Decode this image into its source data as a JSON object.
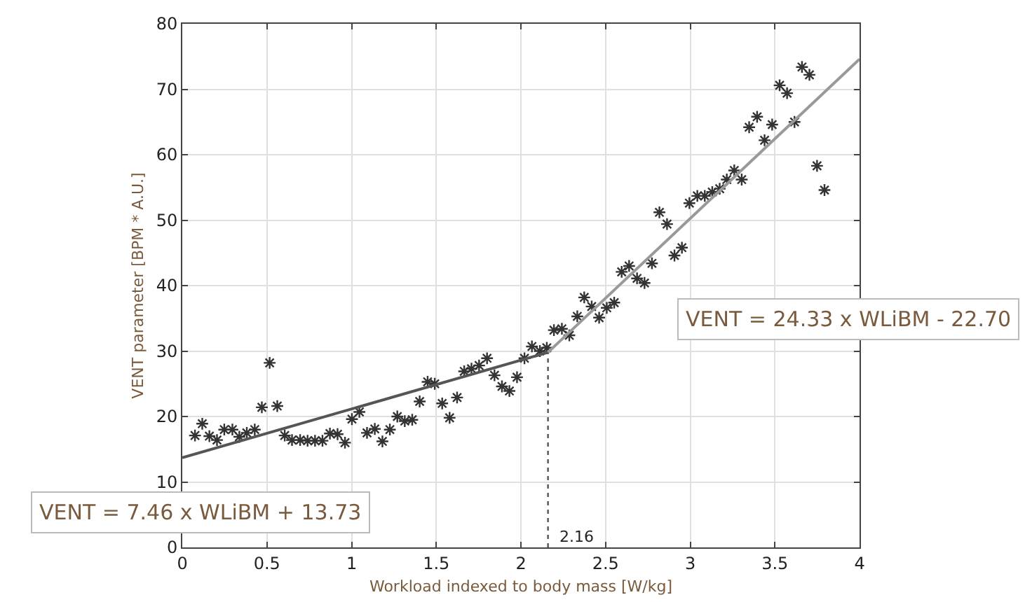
{
  "chart_data": {
    "type": "scatter",
    "xlabel": "Workload indexed to body mass [W/kg]",
    "ylabel": "VENT parameter [BPM * A.U.]",
    "xlim": [
      0,
      4
    ],
    "xticks": [
      0,
      0.5,
      1,
      1.5,
      2,
      2.5,
      3,
      3.5,
      4
    ],
    "ylim": [
      0,
      80
    ],
    "yticks": [
      0,
      10,
      20,
      30,
      40,
      50,
      60,
      70,
      80
    ],
    "grid": true,
    "series": [
      {
        "marker": "cross",
        "color": "#333333",
        "x": [
          0.075,
          0.118,
          0.16,
          0.205,
          0.248,
          0.296,
          0.337,
          0.381,
          0.428,
          0.47,
          0.516,
          0.561,
          0.605,
          0.648,
          0.696,
          0.74,
          0.784,
          0.828,
          0.872,
          0.917,
          0.961,
          1.002,
          1.046,
          1.091,
          1.137,
          1.182,
          1.226,
          1.27,
          1.314,
          1.358,
          1.402,
          1.449,
          1.491,
          1.535,
          1.579,
          1.623,
          1.665,
          1.708,
          1.753,
          1.8,
          1.844,
          1.888,
          1.932,
          1.977,
          2.021,
          2.065,
          2.112,
          2.153,
          2.195,
          2.242,
          2.286,
          2.333,
          2.374,
          2.418,
          2.462,
          2.507,
          2.551,
          2.595,
          2.639,
          2.686,
          2.73,
          2.774,
          2.818,
          2.863,
          2.907,
          2.951,
          2.995,
          3.042,
          3.086,
          3.13,
          3.174,
          3.216,
          3.26,
          3.304,
          3.348,
          3.395,
          3.439,
          3.484,
          3.528,
          3.572,
          3.616,
          3.66,
          3.704,
          3.749,
          3.793
        ],
        "values": [
          17.1,
          18.9,
          17.0,
          16.4,
          18.0,
          18.0,
          16.9,
          17.5,
          18.0,
          21.4,
          28.2,
          21.6,
          17.1,
          16.4,
          16.4,
          16.3,
          16.3,
          16.3,
          17.4,
          17.3,
          16.0,
          19.6,
          20.7,
          17.5,
          18.1,
          16.2,
          18.0,
          20.0,
          19.3,
          19.5,
          22.3,
          25.3,
          25.0,
          22.0,
          19.8,
          22.9,
          26.9,
          27.3,
          27.8,
          28.9,
          26.3,
          24.6,
          23.9,
          26.0,
          28.9,
          30.7,
          30.0,
          30.5,
          33.2,
          33.4,
          32.4,
          35.3,
          38.2,
          36.8,
          35.1,
          36.6,
          37.4,
          42.1,
          43.0,
          41.1,
          40.4,
          43.4,
          51.2,
          49.4,
          44.6,
          45.8,
          52.6,
          53.7,
          53.7,
          54.3,
          54.8,
          56.2,
          57.6,
          56.2,
          64.2,
          65.8,
          62.2,
          64.6,
          70.6,
          69.4,
          65.0,
          73.4,
          72.2,
          58.3,
          54.6
        ]
      },
      {
        "type": "line",
        "color": "#555555",
        "line_style": "solid",
        "x": [
          0,
          2.16
        ],
        "values": [
          13.7,
          29.8
        ]
      },
      {
        "type": "line",
        "color": "#999999",
        "line_style": "solid",
        "x": [
          2.16,
          4
        ],
        "values": [
          29.8,
          74.6
        ]
      },
      {
        "type": "line",
        "color": "#555555",
        "line_style": "dotted",
        "x": [
          2.16,
          2.16
        ],
        "values": [
          0,
          29.8
        ]
      }
    ],
    "annotations": [
      "VENT = 7.46 x WLiBM + 13.73",
      "VENT = 24.33 x WLiBM - 22.70",
      "2.16"
    ]
  }
}
